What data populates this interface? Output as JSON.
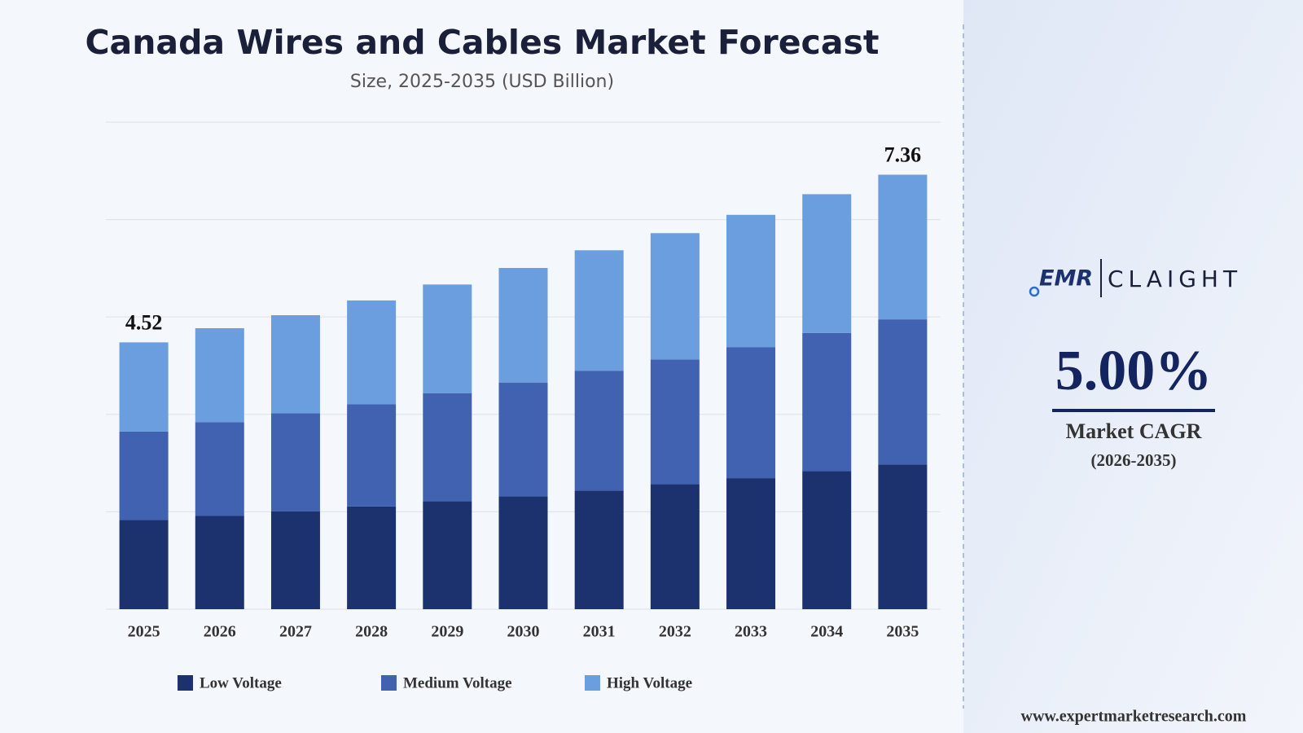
{
  "chart_data": {
    "type": "stacked_bar",
    "title": "Canada Wires and Cables Market Forecast",
    "subtitle": "Size, 2025-2035 (USD Billion)",
    "categories": [
      "2025",
      "2026",
      "2027",
      "2028",
      "2029",
      "2030",
      "2031",
      "2032",
      "2033",
      "2034",
      "2035"
    ],
    "series": [
      {
        "name": "Low Voltage",
        "color": "#1c326e",
        "values": [
          1.51,
          1.58,
          1.66,
          1.74,
          1.83,
          1.91,
          2.01,
          2.12,
          2.22,
          2.34,
          2.45
        ]
      },
      {
        "name": "Medium Voltage",
        "color": "#4162b0",
        "values": [
          1.5,
          1.59,
          1.66,
          1.73,
          1.83,
          1.93,
          2.03,
          2.11,
          2.22,
          2.34,
          2.46
        ]
      },
      {
        "name": "High Voltage",
        "color": "#6a9ede",
        "values": [
          1.51,
          1.59,
          1.66,
          1.76,
          1.84,
          1.94,
          2.04,
          2.14,
          2.24,
          2.35,
          2.45
        ]
      }
    ],
    "total_labels": [
      {
        "category": "2025",
        "value": 4.52
      },
      {
        "category": "2035",
        "value": 7.36
      }
    ],
    "ylim": [
      0,
      8.25
    ],
    "yticks": [
      0,
      1.65,
      3.3,
      4.95,
      6.6,
      8.25
    ],
    "grid": true
  },
  "side_panel": {
    "logo_left": "EMR",
    "logo_right": "CLAIGHT",
    "cagr": "5.00%",
    "cagr_label": "Market CAGR",
    "cagr_period": "(2026-2035)",
    "website": "www.expertmarketresearch.com"
  }
}
